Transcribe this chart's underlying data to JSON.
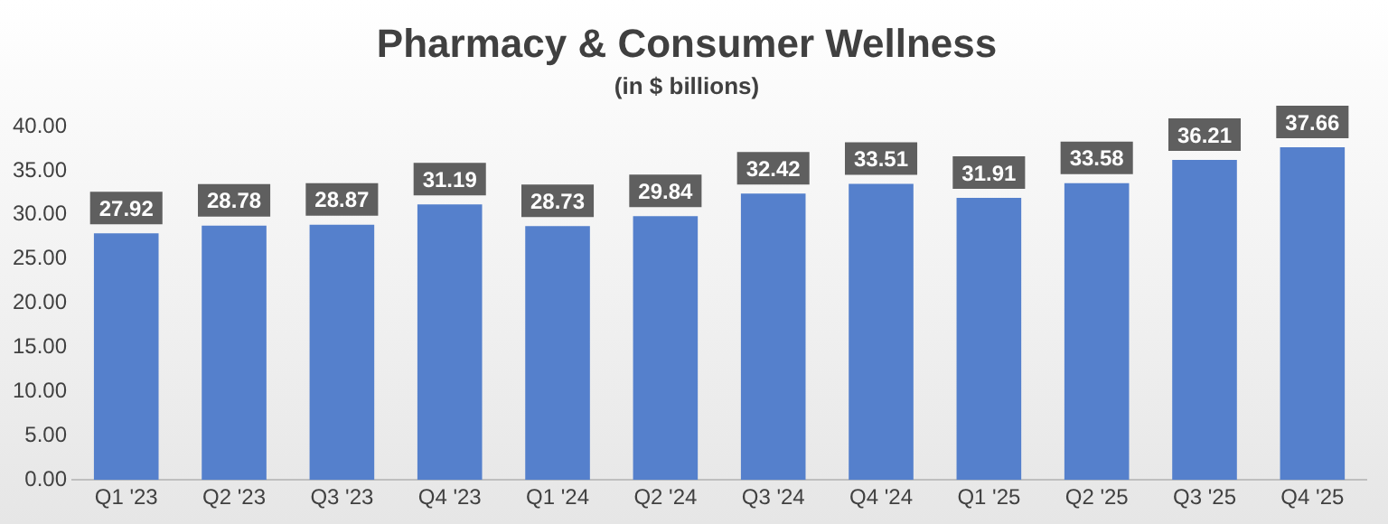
{
  "chart_data": {
    "type": "bar",
    "title": "Pharmacy & Consumer Wellness",
    "subtitle": "(in $ billions)",
    "categories": [
      "Q1 '23",
      "Q2 '23",
      "Q3 '23",
      "Q4 '23",
      "Q1 '24",
      "Q2 '24",
      "Q3 '24",
      "Q4 '24",
      "Q1 '25",
      "Q2 '25",
      "Q3 '25",
      "Q4 '25"
    ],
    "values": [
      27.92,
      28.78,
      28.87,
      31.19,
      28.73,
      29.84,
      32.42,
      33.51,
      31.91,
      33.58,
      36.21,
      37.66
    ],
    "color": "#5580cc",
    "ylim": [
      0,
      40
    ],
    "yticks": [
      {
        "value": 0,
        "label": "0.00"
      },
      {
        "value": 5,
        "label": "5.00"
      },
      {
        "value": 10,
        "label": "10.00"
      },
      {
        "value": 15,
        "label": "15.00"
      },
      {
        "value": 20,
        "label": "20.00"
      },
      {
        "value": 25,
        "label": "25.00"
      },
      {
        "value": 30,
        "label": "30.00"
      },
      {
        "value": 35,
        "label": "35.00"
      },
      {
        "value": 40,
        "label": "40.00"
      }
    ],
    "grid": false,
    "legend": false,
    "data_labels": true
  }
}
